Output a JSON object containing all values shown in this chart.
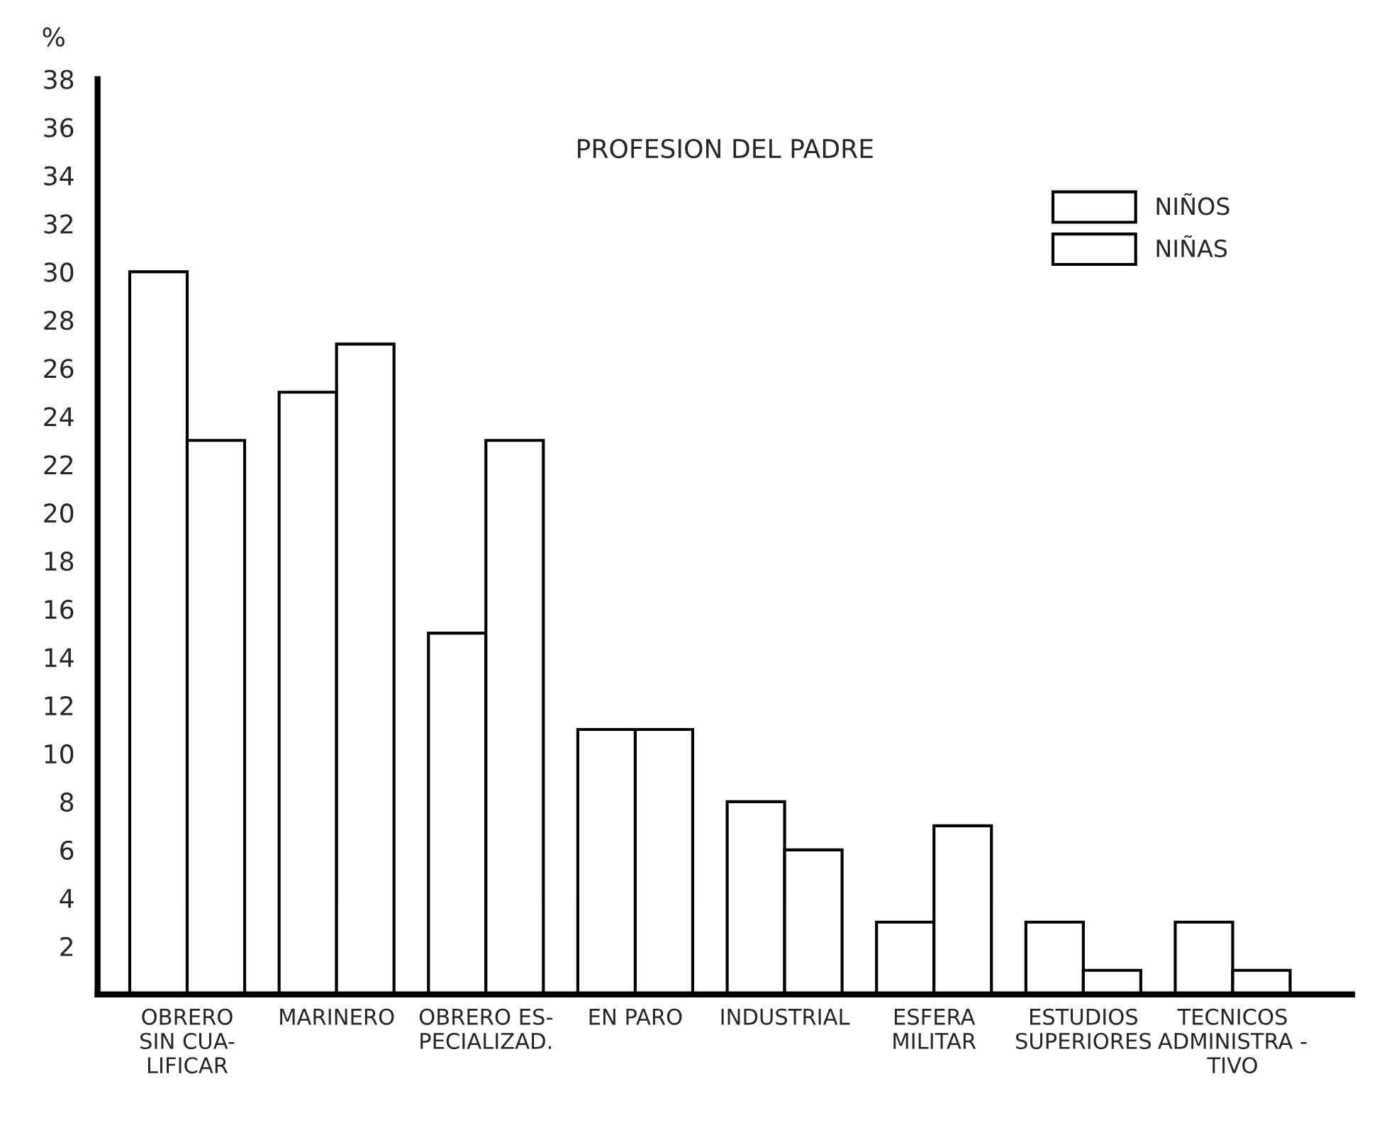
{
  "chart_data": {
    "type": "bar",
    "title": "PROFESION DEL PADRE",
    "ylabel": "%",
    "categories": [
      "OBRERO\nSIN CUA-\nLIFICAR",
      "MARINERO",
      "OBRERO ES-\nPECIALIZAD.",
      "EN PARO",
      "INDUSTRIAL",
      "ESFERA\nMILITAR",
      "ESTUDIOS\nSUPERIORES",
      "TECNICOS\nADMINISTRA -\nTIVO"
    ],
    "series": [
      {
        "name": "NIÑOS",
        "color": "#ffffff",
        "values": [
          30,
          25,
          15,
          11,
          8,
          3,
          3,
          3
        ]
      },
      {
        "name": "NIÑAS",
        "color": "#ffffff",
        "values": [
          23,
          27,
          23,
          11,
          6,
          7,
          1,
          1
        ]
      }
    ],
    "ylim": [
      0,
      38
    ],
    "yticks": [
      2,
      4,
      6,
      8,
      10,
      12,
      14,
      16,
      18,
      20,
      22,
      24,
      26,
      28,
      30,
      32,
      34,
      36,
      38
    ],
    "grid": false,
    "legend": "top right"
  }
}
